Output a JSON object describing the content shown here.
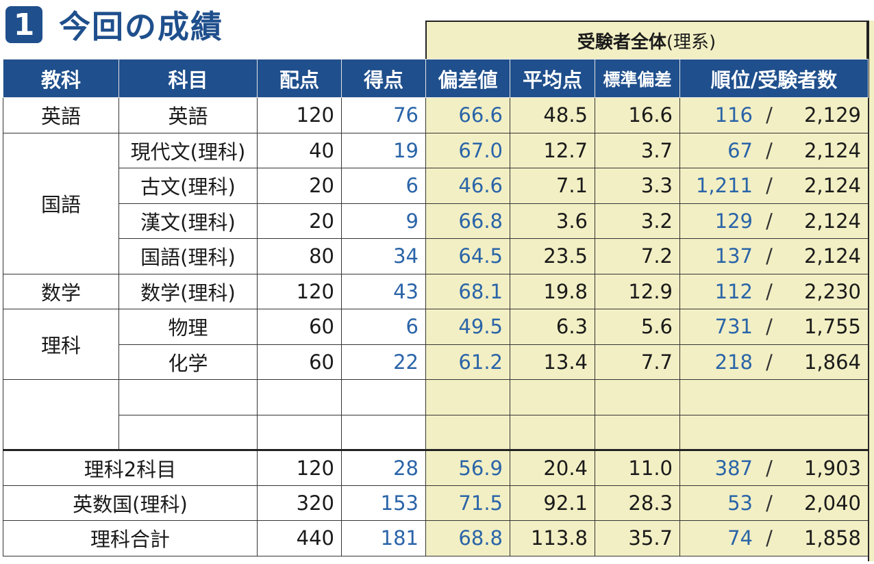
{
  "title": {
    "number": "1",
    "text": "今回の成績"
  },
  "group_header": {
    "main": "受験者全体",
    "paren": "(理系)"
  },
  "columns": [
    "教科",
    "科目",
    "配点",
    "得点",
    "偏差値",
    "平均点",
    "標準偏差",
    "順位/受験者数"
  ],
  "rows": [
    {
      "category": "英語",
      "subject": "英語",
      "max": "120",
      "score": "76",
      "dev": "66.6",
      "avg": "48.5",
      "sd": "16.6",
      "rank": "116",
      "total": "2,129"
    },
    {
      "category": "国語",
      "subject": "現代文(理科)",
      "max": "40",
      "score": "19",
      "dev": "67.0",
      "avg": "12.7",
      "sd": "3.7",
      "rank": "67",
      "total": "2,124"
    },
    {
      "category": "",
      "subject": "古文(理科)",
      "max": "20",
      "score": "6",
      "dev": "46.6",
      "avg": "7.1",
      "sd": "3.3",
      "rank": "1,211",
      "total": "2,124"
    },
    {
      "category": "",
      "subject": "漢文(理科)",
      "max": "20",
      "score": "9",
      "dev": "66.8",
      "avg": "3.6",
      "sd": "3.2",
      "rank": "129",
      "total": "2,124"
    },
    {
      "category": "",
      "subject": "国語(理科)",
      "max": "80",
      "score": "34",
      "dev": "64.5",
      "avg": "23.5",
      "sd": "7.2",
      "rank": "137",
      "total": "2,124"
    },
    {
      "category": "数学",
      "subject": "数学(理科)",
      "max": "120",
      "score": "43",
      "dev": "68.1",
      "avg": "19.8",
      "sd": "12.9",
      "rank": "112",
      "total": "2,230"
    },
    {
      "category": "理科",
      "subject": "物理",
      "max": "60",
      "score": "6",
      "dev": "49.5",
      "avg": "6.3",
      "sd": "5.6",
      "rank": "731",
      "total": "1,755"
    },
    {
      "category": "",
      "subject": "化学",
      "max": "60",
      "score": "22",
      "dev": "61.2",
      "avg": "13.4",
      "sd": "7.7",
      "rank": "218",
      "total": "1,864"
    }
  ],
  "summary": [
    {
      "label": "理科2科目",
      "max": "120",
      "score": "28",
      "dev": "56.9",
      "avg": "20.4",
      "sd": "11.0",
      "rank": "387",
      "total": "1,903"
    },
    {
      "label": "英数国(理科)",
      "max": "320",
      "score": "153",
      "dev": "71.5",
      "avg": "92.1",
      "sd": "28.3",
      "rank": "53",
      "total": "2,040"
    },
    {
      "label": "理科合計",
      "max": "440",
      "score": "181",
      "dev": "68.8",
      "avg": "113.8",
      "sd": "35.7",
      "rank": "74",
      "total": "1,858"
    }
  ],
  "rank_separator": "/",
  "colors": {
    "header_bg": "#1f4f8c",
    "highlight_bg": "#f2efc4",
    "score_text": "#2a64a8"
  }
}
